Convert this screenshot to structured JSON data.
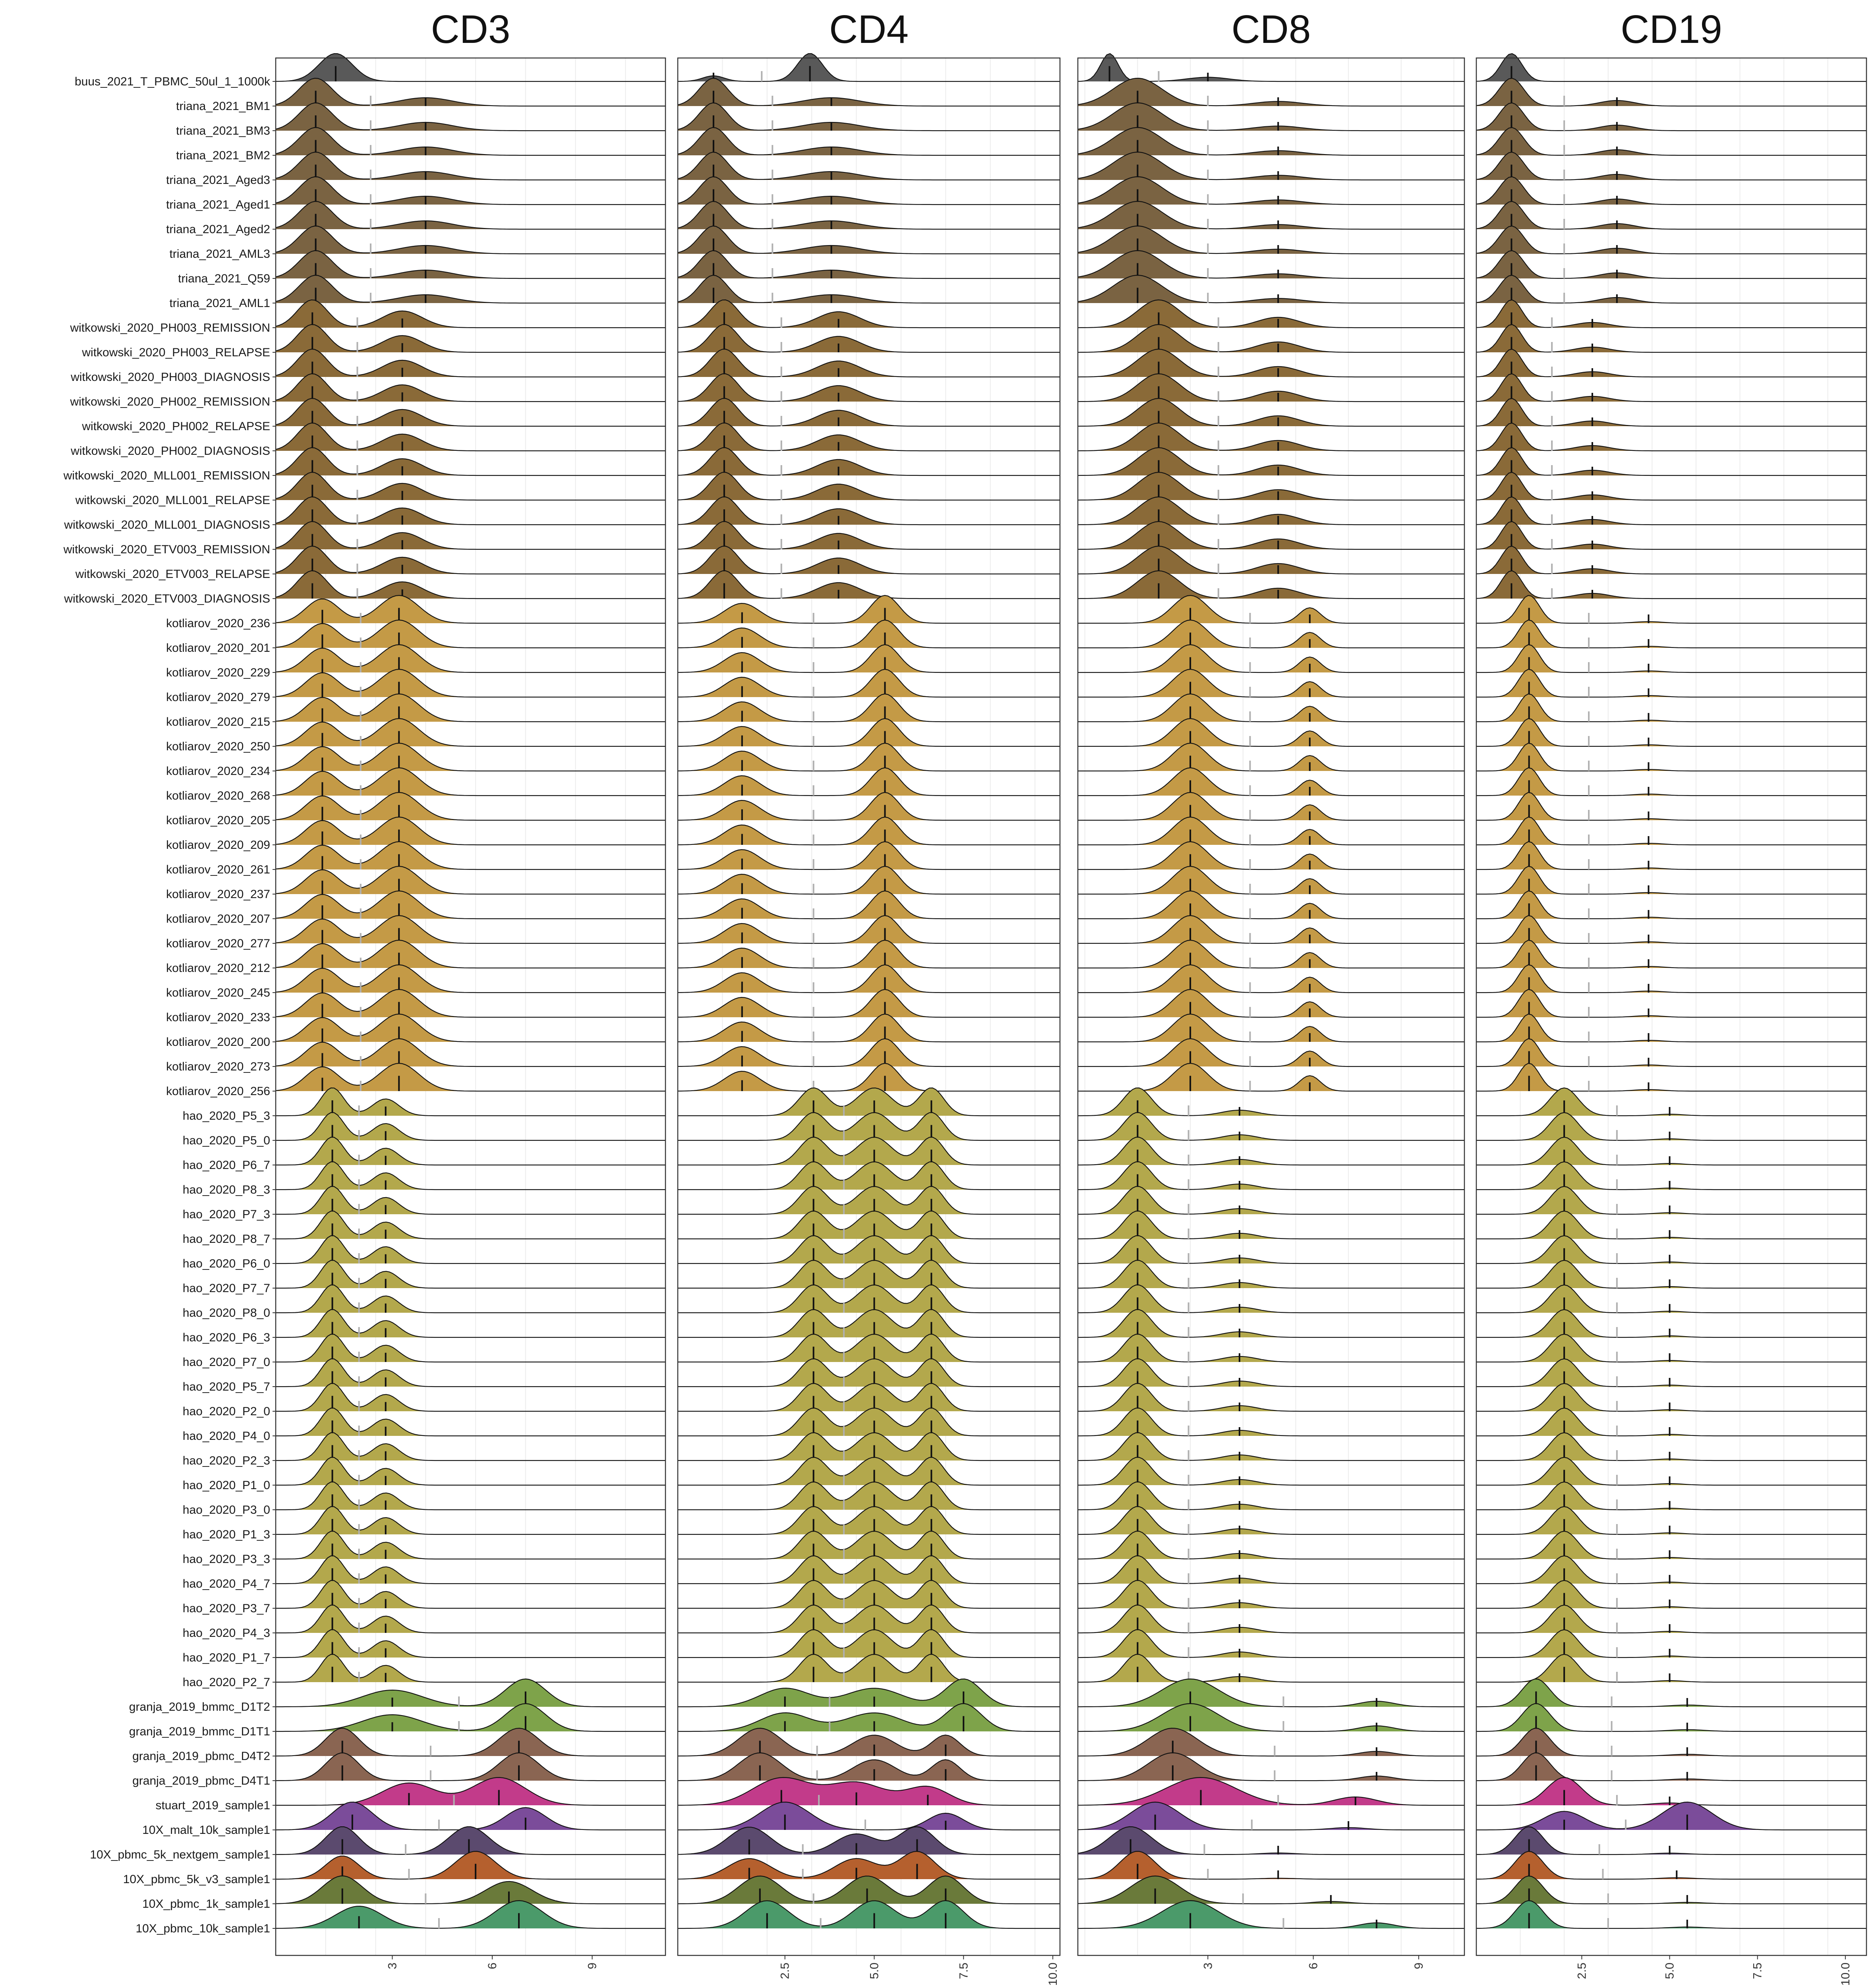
{
  "chart_data": {
    "type": "ridgeline",
    "panels": [
      "CD3",
      "CD4",
      "CD8",
      "CD19"
    ],
    "samples": [
      {
        "name": "buus_2021_T_PBMC_50ul_1_1000k",
        "group": "buus"
      },
      {
        "name": "triana_2021_BM1",
        "group": "triana"
      },
      {
        "name": "triana_2021_BM3",
        "group": "triana"
      },
      {
        "name": "triana_2021_BM2",
        "group": "triana"
      },
      {
        "name": "triana_2021_Aged3",
        "group": "triana"
      },
      {
        "name": "triana_2021_Aged1",
        "group": "triana"
      },
      {
        "name": "triana_2021_Aged2",
        "group": "triana"
      },
      {
        "name": "triana_2021_AML3",
        "group": "triana"
      },
      {
        "name": "triana_2021_Q59",
        "group": "triana"
      },
      {
        "name": "triana_2021_AML1",
        "group": "triana"
      },
      {
        "name": "witkowski_2020_PH003_REMISSION",
        "group": "witkowski"
      },
      {
        "name": "witkowski_2020_PH003_RELAPSE",
        "group": "witkowski"
      },
      {
        "name": "witkowski_2020_PH003_DIAGNOSIS",
        "group": "witkowski"
      },
      {
        "name": "witkowski_2020_PH002_REMISSION",
        "group": "witkowski"
      },
      {
        "name": "witkowski_2020_PH002_RELAPSE",
        "group": "witkowski"
      },
      {
        "name": "witkowski_2020_PH002_DIAGNOSIS",
        "group": "witkowski"
      },
      {
        "name": "witkowski_2020_MLL001_REMISSION",
        "group": "witkowski"
      },
      {
        "name": "witkowski_2020_MLL001_RELAPSE",
        "group": "witkowski"
      },
      {
        "name": "witkowski_2020_MLL001_DIAGNOSIS",
        "group": "witkowski"
      },
      {
        "name": "witkowski_2020_ETV003_REMISSION",
        "group": "witkowski"
      },
      {
        "name": "witkowski_2020_ETV003_RELAPSE",
        "group": "witkowski"
      },
      {
        "name": "witkowski_2020_ETV003_DIAGNOSIS",
        "group": "witkowski"
      },
      {
        "name": "kotliarov_2020_236",
        "group": "kotliarov"
      },
      {
        "name": "kotliarov_2020_201",
        "group": "kotliarov"
      },
      {
        "name": "kotliarov_2020_229",
        "group": "kotliarov"
      },
      {
        "name": "kotliarov_2020_279",
        "group": "kotliarov"
      },
      {
        "name": "kotliarov_2020_215",
        "group": "kotliarov"
      },
      {
        "name": "kotliarov_2020_250",
        "group": "kotliarov"
      },
      {
        "name": "kotliarov_2020_234",
        "group": "kotliarov"
      },
      {
        "name": "kotliarov_2020_268",
        "group": "kotliarov"
      },
      {
        "name": "kotliarov_2020_205",
        "group": "kotliarov"
      },
      {
        "name": "kotliarov_2020_209",
        "group": "kotliarov"
      },
      {
        "name": "kotliarov_2020_261",
        "group": "kotliarov"
      },
      {
        "name": "kotliarov_2020_237",
        "group": "kotliarov"
      },
      {
        "name": "kotliarov_2020_207",
        "group": "kotliarov"
      },
      {
        "name": "kotliarov_2020_277",
        "group": "kotliarov"
      },
      {
        "name": "kotliarov_2020_212",
        "group": "kotliarov"
      },
      {
        "name": "kotliarov_2020_245",
        "group": "kotliarov"
      },
      {
        "name": "kotliarov_2020_233",
        "group": "kotliarov"
      },
      {
        "name": "kotliarov_2020_200",
        "group": "kotliarov"
      },
      {
        "name": "kotliarov_2020_273",
        "group": "kotliarov"
      },
      {
        "name": "kotliarov_2020_256",
        "group": "kotliarov"
      },
      {
        "name": "hao_2020_P5_3",
        "group": "hao"
      },
      {
        "name": "hao_2020_P5_0",
        "group": "hao"
      },
      {
        "name": "hao_2020_P6_7",
        "group": "hao"
      },
      {
        "name": "hao_2020_P8_3",
        "group": "hao"
      },
      {
        "name": "hao_2020_P7_3",
        "group": "hao"
      },
      {
        "name": "hao_2020_P8_7",
        "group": "hao"
      },
      {
        "name": "hao_2020_P6_0",
        "group": "hao"
      },
      {
        "name": "hao_2020_P7_7",
        "group": "hao"
      },
      {
        "name": "hao_2020_P8_0",
        "group": "hao"
      },
      {
        "name": "hao_2020_P6_3",
        "group": "hao"
      },
      {
        "name": "hao_2020_P7_0",
        "group": "hao"
      },
      {
        "name": "hao_2020_P5_7",
        "group": "hao"
      },
      {
        "name": "hao_2020_P2_0",
        "group": "hao"
      },
      {
        "name": "hao_2020_P4_0",
        "group": "hao"
      },
      {
        "name": "hao_2020_P2_3",
        "group": "hao"
      },
      {
        "name": "hao_2020_P1_0",
        "group": "hao"
      },
      {
        "name": "hao_2020_P3_0",
        "group": "hao"
      },
      {
        "name": "hao_2020_P1_3",
        "group": "hao"
      },
      {
        "name": "hao_2020_P3_3",
        "group": "hao"
      },
      {
        "name": "hao_2020_P4_7",
        "group": "hao"
      },
      {
        "name": "hao_2020_P3_7",
        "group": "hao"
      },
      {
        "name": "hao_2020_P4_3",
        "group": "hao"
      },
      {
        "name": "hao_2020_P1_7",
        "group": "hao"
      },
      {
        "name": "hao_2020_P2_7",
        "group": "hao"
      },
      {
        "name": "granja_2019_bmmc_D1T2",
        "group": "granja_bmmc"
      },
      {
        "name": "granja_2019_bmmc_D1T1",
        "group": "granja_bmmc"
      },
      {
        "name": "granja_2019_pbmc_D4T2",
        "group": "granja_pbmc"
      },
      {
        "name": "granja_2019_pbmc_D4T1",
        "group": "granja_pbmc"
      },
      {
        "name": "stuart_2019_sample1",
        "group": "stuart"
      },
      {
        "name": "10X_malt_10k_sample1",
        "group": "10X_malt"
      },
      {
        "name": "10X_pbmc_5k_nextgem_sample1",
        "group": "10X_nextgem"
      },
      {
        "name": "10X_pbmc_5k_v3_sample1",
        "group": "10X_v3"
      },
      {
        "name": "10X_pbmc_1k_sample1",
        "group": "10X_1k"
      },
      {
        "name": "10X_pbmc_10k_sample1",
        "group": "10X_10k"
      }
    ],
    "group_colors": {
      "buus": "#595959",
      "triana": "#7a6342",
      "witkowski": "#8a6a38",
      "kotliarov": "#c49a46",
      "hao": "#b3a84c",
      "granja_bmmc": "#7ea34a",
      "granja_pbmc": "#8a6552",
      "stuart": "#c23b8a",
      "10X_malt": "#7b4c9a",
      "10X_nextgem": "#5b4a6e",
      "10X_v3": "#b5602e",
      "10X_1k": "#6a7a3a",
      "10X_10k": "#4b9a6a"
    },
    "axes": {
      "CD3": {
        "xlim": [
          -0.5,
          11.2
        ],
        "ticks": [
          3,
          6,
          9
        ],
        "tick_labels": [
          "3",
          "6",
          "9"
        ]
      },
      "CD4": {
        "xlim": [
          -0.5,
          10.2
        ],
        "ticks": [
          2.5,
          5.0,
          7.5,
          10.0
        ],
        "tick_labels": [
          "2.5",
          "5.0",
          "7.5",
          "10.0"
        ]
      },
      "CD8": {
        "xlim": [
          -0.7,
          10.3
        ],
        "ticks": [
          3,
          6,
          9
        ],
        "tick_labels": [
          "3",
          "6",
          "9"
        ]
      },
      "CD19": {
        "xlim": [
          -0.5,
          10.6
        ],
        "ticks": [
          2.5,
          5.0,
          7.5,
          10.0
        ],
        "tick_labels": [
          "2.5",
          "5.0",
          "7.5",
          "10.0"
        ]
      }
    },
    "grid": true,
    "legend": "none"
  }
}
